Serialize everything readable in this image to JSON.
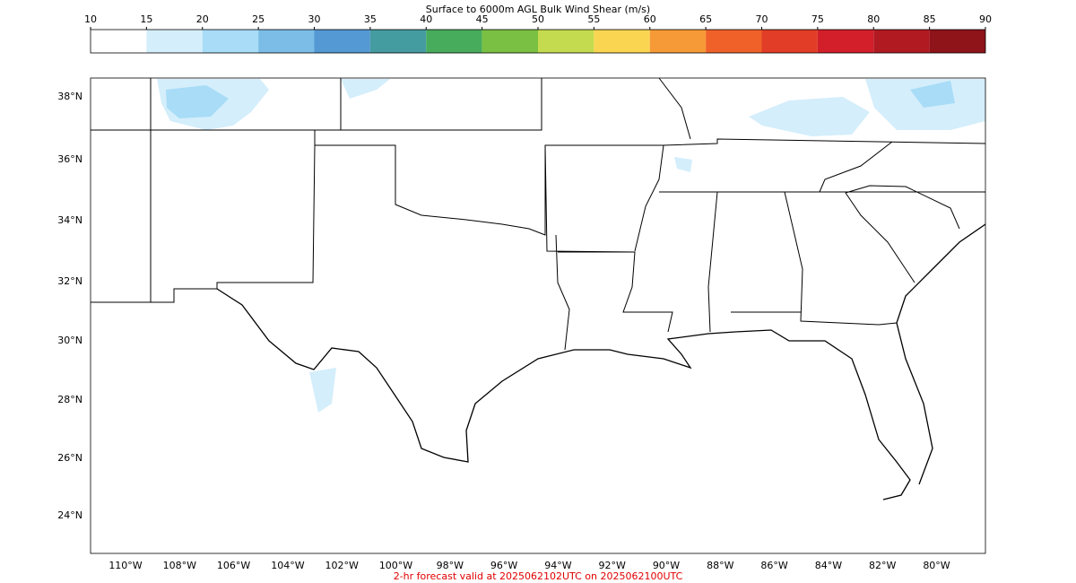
{
  "title": "Surface to 6000m AGL Bulk Wind Shear (m/s)",
  "colorbar": {
    "ticks": [
      10,
      15,
      20,
      25,
      30,
      35,
      40,
      45,
      50,
      55,
      60,
      65,
      70,
      75,
      80,
      85,
      90
    ],
    "colors": [
      "#ffffff",
      "#d4eefb",
      "#a8dcf7",
      "#7bbde6",
      "#5498d4",
      "#449ca0",
      "#47ac5c",
      "#7ac143",
      "#c5db4f",
      "#fad552",
      "#f69a37",
      "#f0612a",
      "#e13d27",
      "#d21f2a",
      "#b21a22",
      "#8f141a"
    ]
  },
  "map": {
    "lat_labels": [
      "38°N",
      "36°N",
      "34°N",
      "32°N",
      "30°N",
      "28°N",
      "26°N",
      "24°N"
    ],
    "lon_labels": [
      "110°W",
      "108°W",
      "106°W",
      "104°W",
      "102°W",
      "100°W",
      "98°W",
      "96°W",
      "94°W",
      "92°W",
      "90°W",
      "88°W",
      "86°W",
      "84°W",
      "82°W",
      "80°W"
    ]
  },
  "footer": "2-hr forecast valid at 2025062102UTC on 2025062100UTC"
}
